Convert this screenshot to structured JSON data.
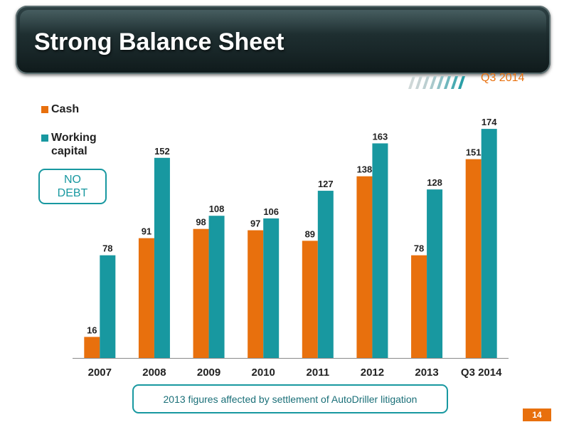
{
  "slide": {
    "title": "Strong Balance Sheet",
    "period": "Q3 2014",
    "callout": "NO\nDEBT",
    "footnote": "2013 figures affected by settlement of AutoDriller litigation",
    "page_number": "14"
  },
  "colors": {
    "cash": "#e8700d",
    "working_capital": "#1898a0",
    "header_bg": "#1b2a2c"
  },
  "chart_data": {
    "type": "bar",
    "title": "",
    "categories": [
      "2007",
      "2008",
      "2009",
      "2010",
      "2011",
      "2012",
      "2013",
      "Q3 2014"
    ],
    "series": [
      {
        "name": "Cash",
        "values": [
          16,
          91,
          98,
          97,
          89,
          138,
          78,
          151
        ]
      },
      {
        "name": "Working capital",
        "values": [
          78,
          152,
          108,
          106,
          127,
          163,
          128,
          174
        ]
      }
    ],
    "ylim": [
      0,
      180
    ],
    "grid": false,
    "legend_placement": "top-left",
    "data_labels": true
  }
}
